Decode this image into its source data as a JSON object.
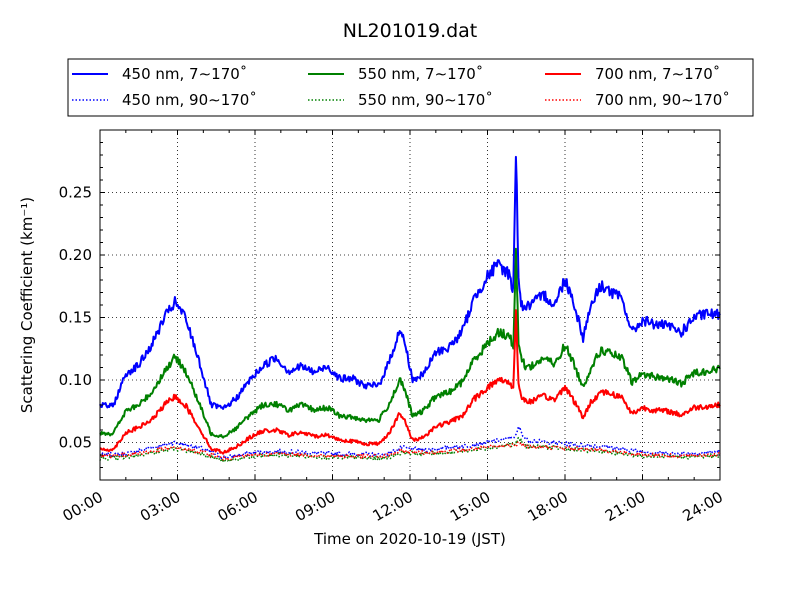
{
  "chart_data": {
    "type": "line",
    "title": "NL201019.dat",
    "xlabel": "Time on 2020-10-19 (JST)",
    "ylabel": "Scattering Coefficient (km⁻¹)",
    "xlim": [
      0,
      24
    ],
    "ylim": [
      0.02,
      0.3
    ],
    "x_ticks": [
      0,
      3,
      6,
      9,
      12,
      15,
      18,
      21,
      24
    ],
    "x_tick_labels": [
      "00:00",
      "03:00",
      "06:00",
      "09:00",
      "12:00",
      "15:00",
      "18:00",
      "21:00",
      "24:00"
    ],
    "y_ticks": [
      0.05,
      0.1,
      0.15,
      0.2,
      0.25
    ],
    "y_tick_labels": [
      "0.05",
      "0.10",
      "0.15",
      "0.20",
      "0.25"
    ],
    "grid": true,
    "legend_position": "top",
    "series": [
      {
        "name": "450 nm, 7∼170˚",
        "color": "#0000ff",
        "style": "solid",
        "x": [
          0,
          0.5,
          1,
          1.5,
          2,
          2.5,
          2.9,
          3.3,
          3.8,
          4.3,
          4.8,
          5.3,
          5.8,
          6.3,
          6.8,
          7.3,
          7.8,
          8.3,
          8.8,
          9.3,
          9.8,
          10.3,
          10.8,
          11.2,
          11.6,
          11.8,
          12.1,
          12.5,
          13.0,
          13.5,
          14.0,
          14.5,
          15.0,
          15.4,
          15.8,
          16.0,
          16.1,
          16.2,
          16.3,
          16.5,
          16.8,
          17.2,
          17.6,
          18.0,
          18.3,
          18.7,
          19.0,
          19.4,
          19.8,
          20.2,
          20.6,
          21.0,
          21.4,
          22.0,
          22.5,
          23.0,
          23.5,
          24.0
        ],
        "y": [
          0.08,
          0.079,
          0.105,
          0.112,
          0.128,
          0.15,
          0.162,
          0.15,
          0.118,
          0.08,
          0.077,
          0.086,
          0.1,
          0.111,
          0.118,
          0.107,
          0.111,
          0.106,
          0.111,
          0.101,
          0.101,
          0.095,
          0.096,
          0.115,
          0.14,
          0.13,
          0.1,
          0.104,
          0.122,
          0.126,
          0.138,
          0.166,
          0.183,
          0.192,
          0.186,
          0.172,
          0.285,
          0.185,
          0.16,
          0.158,
          0.162,
          0.168,
          0.16,
          0.181,
          0.165,
          0.134,
          0.16,
          0.176,
          0.17,
          0.165,
          0.138,
          0.148,
          0.145,
          0.143,
          0.138,
          0.15,
          0.153,
          0.152
        ]
      },
      {
        "name": "450 nm, 90∼170˚",
        "color": "#0000ff",
        "style": "dotted",
        "x": [
          0,
          1,
          2,
          2.9,
          4,
          4.8,
          6,
          7,
          8,
          9,
          10,
          11,
          11.7,
          12.5,
          13.5,
          14.5,
          15.5,
          16.1,
          16.2,
          16.5,
          17.5,
          18.5,
          19.5,
          20.5,
          21.5,
          22.5,
          23.5,
          24
        ],
        "y": [
          0.04,
          0.041,
          0.046,
          0.05,
          0.045,
          0.038,
          0.042,
          0.043,
          0.042,
          0.041,
          0.041,
          0.04,
          0.046,
          0.044,
          0.046,
          0.048,
          0.052,
          0.055,
          0.062,
          0.052,
          0.05,
          0.048,
          0.047,
          0.044,
          0.042,
          0.041,
          0.042,
          0.043
        ]
      },
      {
        "name": "550 nm, 7∼170˚",
        "color": "#008000",
        "style": "solid",
        "x": [
          0,
          0.5,
          1,
          1.5,
          2,
          2.5,
          2.9,
          3.3,
          3.8,
          4.3,
          4.8,
          5.3,
          5.8,
          6.3,
          6.8,
          7.3,
          7.8,
          8.3,
          8.8,
          9.3,
          9.8,
          10.3,
          10.8,
          11.2,
          11.6,
          11.8,
          12.1,
          12.5,
          13.0,
          13.5,
          14.0,
          14.5,
          15.0,
          15.4,
          15.8,
          16.0,
          16.1,
          16.2,
          16.3,
          16.5,
          16.8,
          17.2,
          17.6,
          18.0,
          18.3,
          18.7,
          19.0,
          19.4,
          19.8,
          20.2,
          20.6,
          21.0,
          21.4,
          22.0,
          22.5,
          23.0,
          23.5,
          24.0
        ],
        "y": [
          0.058,
          0.057,
          0.075,
          0.08,
          0.09,
          0.107,
          0.118,
          0.108,
          0.083,
          0.057,
          0.055,
          0.062,
          0.072,
          0.08,
          0.081,
          0.076,
          0.08,
          0.076,
          0.078,
          0.071,
          0.07,
          0.068,
          0.068,
          0.081,
          0.1,
          0.092,
          0.071,
          0.075,
          0.087,
          0.09,
          0.098,
          0.117,
          0.129,
          0.138,
          0.136,
          0.128,
          0.205,
          0.131,
          0.118,
          0.11,
          0.112,
          0.118,
          0.112,
          0.128,
          0.115,
          0.094,
          0.11,
          0.124,
          0.121,
          0.117,
          0.098,
          0.105,
          0.103,
          0.101,
          0.097,
          0.106,
          0.107,
          0.109
        ]
      },
      {
        "name": "550 nm, 90∼170˚",
        "color": "#008000",
        "style": "dotted",
        "x": [
          0,
          1,
          2,
          2.9,
          4,
          4.8,
          6,
          7,
          8,
          9,
          10,
          11,
          11.7,
          12.5,
          13.5,
          14.5,
          15.5,
          16.1,
          16.2,
          16.5,
          17.5,
          18.5,
          19.5,
          20.5,
          21.5,
          22.5,
          23.5,
          24
        ],
        "y": [
          0.037,
          0.038,
          0.042,
          0.045,
          0.041,
          0.035,
          0.039,
          0.04,
          0.039,
          0.038,
          0.038,
          0.037,
          0.042,
          0.041,
          0.042,
          0.044,
          0.047,
          0.049,
          0.053,
          0.047,
          0.046,
          0.044,
          0.043,
          0.04,
          0.039,
          0.038,
          0.039,
          0.04
        ]
      },
      {
        "name": "700 nm, 7∼170˚",
        "color": "#ff0000",
        "style": "solid",
        "x": [
          0,
          0.5,
          1,
          1.5,
          2,
          2.5,
          2.9,
          3.3,
          3.8,
          4.3,
          4.8,
          5.3,
          5.8,
          6.3,
          6.8,
          7.3,
          7.8,
          8.3,
          8.8,
          9.3,
          9.8,
          10.3,
          10.8,
          11.2,
          11.6,
          11.8,
          12.1,
          12.5,
          13.0,
          13.5,
          14.0,
          14.5,
          15.0,
          15.4,
          15.8,
          16.0,
          16.1,
          16.2,
          16.3,
          16.5,
          16.8,
          17.2,
          17.6,
          18.0,
          18.3,
          18.7,
          19.0,
          19.4,
          19.8,
          20.2,
          20.6,
          21.0,
          21.4,
          22.0,
          22.5,
          23.0,
          23.5,
          24.0
        ],
        "y": [
          0.045,
          0.044,
          0.058,
          0.062,
          0.068,
          0.08,
          0.087,
          0.08,
          0.063,
          0.045,
          0.042,
          0.047,
          0.054,
          0.059,
          0.06,
          0.056,
          0.058,
          0.055,
          0.056,
          0.052,
          0.051,
          0.049,
          0.049,
          0.058,
          0.073,
          0.067,
          0.052,
          0.054,
          0.063,
          0.066,
          0.071,
          0.085,
          0.094,
          0.1,
          0.099,
          0.094,
          0.155,
          0.096,
          0.088,
          0.082,
          0.084,
          0.087,
          0.084,
          0.095,
          0.085,
          0.07,
          0.082,
          0.091,
          0.089,
          0.086,
          0.073,
          0.078,
          0.076,
          0.075,
          0.072,
          0.078,
          0.079,
          0.08
        ]
      },
      {
        "name": "700 nm, 90∼170˚",
        "color": "#ff0000",
        "style": "dotted",
        "x": [
          0,
          1,
          2,
          2.9,
          4,
          4.8,
          6,
          7,
          8,
          9,
          10,
          11,
          11.7,
          12.5,
          13.5,
          14.5,
          15.5,
          16.1,
          16.2,
          16.5,
          17.5,
          18.5,
          19.5,
          20.5,
          21.5,
          22.5,
          23.5,
          24
        ],
        "y": [
          0.039,
          0.04,
          0.043,
          0.046,
          0.042,
          0.037,
          0.04,
          0.041,
          0.04,
          0.039,
          0.039,
          0.039,
          0.043,
          0.042,
          0.043,
          0.045,
          0.047,
          0.048,
          0.051,
          0.047,
          0.046,
          0.045,
          0.044,
          0.041,
          0.04,
          0.039,
          0.04,
          0.041
        ]
      }
    ]
  }
}
